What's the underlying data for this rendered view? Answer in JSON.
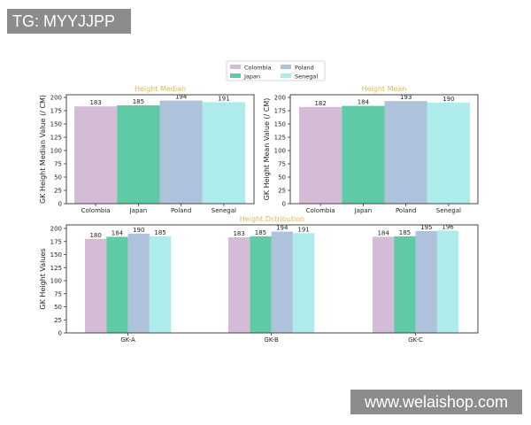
{
  "watermarks": {
    "top_left": "TG: MYYJJPP",
    "bottom_right": "www.welaishop.com"
  },
  "colors": {
    "Colombia": "#d5bcd6",
    "Japan": "#5fcaa5",
    "Poland": "#aec2db",
    "Senegal": "#aeeceb",
    "title": "#e8b84a"
  },
  "legend": {
    "entries": [
      "Colombia",
      "Japan",
      "Poland",
      "Senegal"
    ],
    "placement": "top-center"
  },
  "chart_data": [
    {
      "type": "bar",
      "title": "Height Median",
      "xlabel": "",
      "ylabel": "GK Height Median Value (/ CM)",
      "categories": [
        "Colombia",
        "Japan",
        "Poland",
        "Senegal"
      ],
      "values": [
        183,
        185,
        194,
        191
      ],
      "ylim": [
        0,
        200
      ],
      "yticks": [
        0,
        25,
        50,
        75,
        100,
        125,
        150,
        175,
        200
      ],
      "grid": false
    },
    {
      "type": "bar",
      "title": "Height Mean",
      "xlabel": "",
      "ylabel": "GK Height Mean Value (/ CM)",
      "categories": [
        "Colombia",
        "Japan",
        "Poland",
        "Senegal"
      ],
      "values": [
        182,
        184,
        193,
        190
      ],
      "ylim": [
        0,
        200
      ],
      "yticks": [
        0,
        25,
        50,
        75,
        100,
        125,
        150,
        175,
        200
      ],
      "grid": false
    },
    {
      "type": "bar",
      "title": "Height Dstribution",
      "xlabel": "",
      "ylabel": "GK Height Values",
      "categories": [
        "GK-A",
        "GK-B",
        "GK-C"
      ],
      "series": [
        {
          "name": "Colombia",
          "values": [
            180,
            183,
            184
          ]
        },
        {
          "name": "Japan",
          "values": [
            184,
            185,
            185
          ]
        },
        {
          "name": "Poland",
          "values": [
            190,
            194,
            195
          ]
        },
        {
          "name": "Senegal",
          "values": [
            185,
            191,
            196
          ]
        }
      ],
      "ylim": [
        0,
        200
      ],
      "yticks": [
        0,
        25,
        50,
        75,
        100,
        125,
        150,
        175,
        200
      ],
      "grid": false
    }
  ]
}
